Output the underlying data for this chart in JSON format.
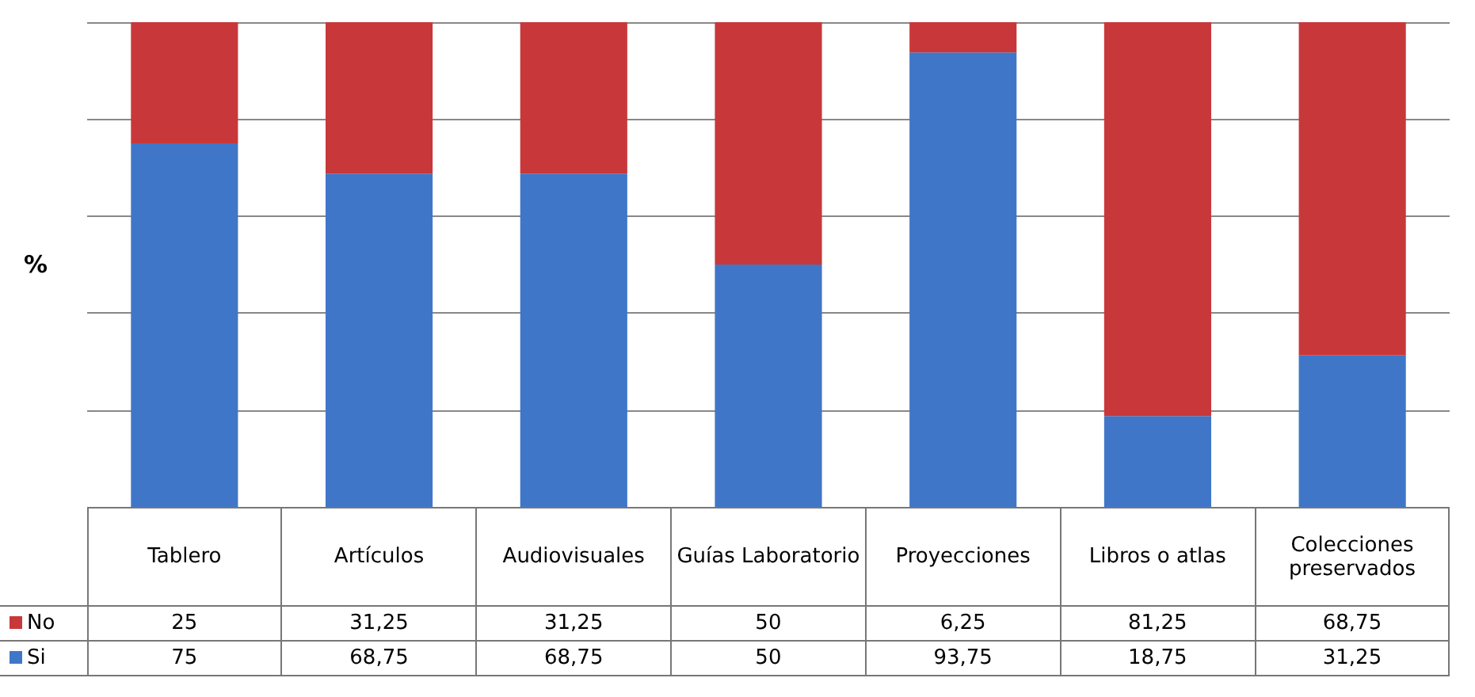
{
  "chart_data": {
    "type": "bar",
    "stacked": true,
    "ylabel": "%",
    "categories": [
      "Tablero",
      "Artículos",
      "Audiovisuales",
      "Guías Laboratorio",
      "Proyecciones",
      "Libros o atlas",
      "Colecciones preservados"
    ],
    "series": [
      {
        "name": "Si",
        "color": "#3f76c8",
        "values": [
          75,
          68.75,
          68.75,
          50,
          93.75,
          18.75,
          31.25
        ],
        "value_labels": [
          "75",
          "68,75",
          "68,75",
          "50",
          "93,75",
          "18,75",
          "31,25"
        ]
      },
      {
        "name": "No",
        "color": "#c8383a",
        "values": [
          25,
          31.25,
          31.25,
          50,
          6.25,
          81.25,
          68.75
        ],
        "value_labels": [
          "25",
          "31,25",
          "31,25",
          "50",
          "6,25",
          "81,25",
          "68,75"
        ]
      }
    ],
    "grid": "y",
    "legend": "bottom left",
    "tick_labels": "x"
  }
}
